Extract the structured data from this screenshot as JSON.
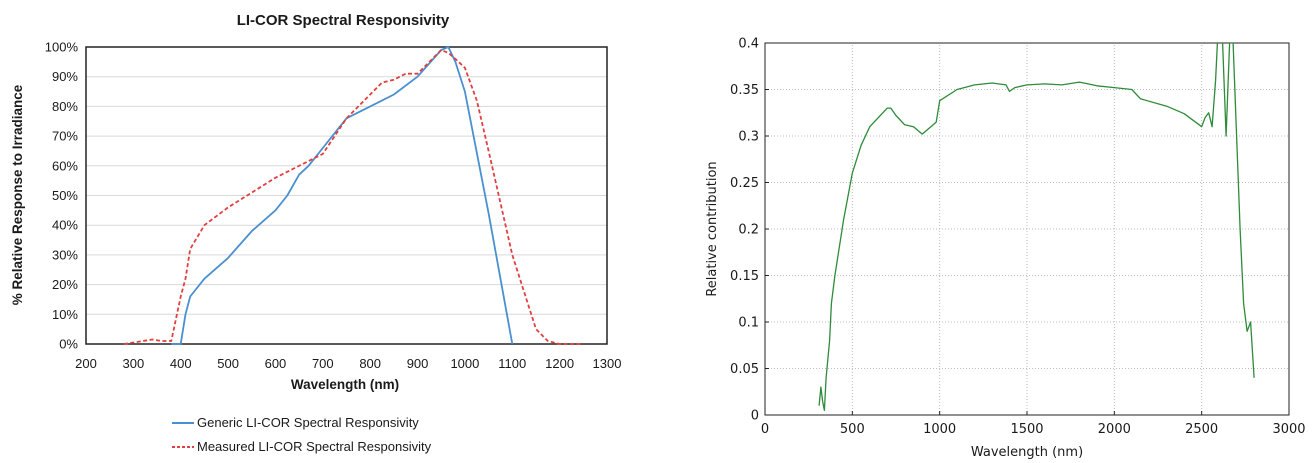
{
  "chart_data": [
    {
      "type": "line",
      "title": "LI-COR Spectral Responsivity",
      "xlabel": "Wavelength (nm)",
      "ylabel": "% Relative Response to Irradiance",
      "xlim": [
        200,
        1300
      ],
      "ylim": [
        0,
        100
      ],
      "x_ticks": [
        "200",
        "300",
        "400",
        "500",
        "600",
        "700",
        "800",
        "900",
        "1000",
        "1100",
        "1200",
        "1300"
      ],
      "y_ticks": [
        "0%",
        "10%",
        "20%",
        "30%",
        "40%",
        "50%",
        "60%",
        "70%",
        "80%",
        "90%",
        "100%"
      ],
      "grid": "horizontal",
      "legend_position": "bottom",
      "series": [
        {
          "name": "Generic LI-COR Spectral Responsivity",
          "color": "#4a90d0",
          "style": "solid",
          "x": [
            380,
            400,
            405,
            410,
            420,
            450,
            500,
            550,
            600,
            625,
            650,
            670,
            700,
            750,
            800,
            850,
            900,
            950,
            965,
            980,
            1000,
            1050,
            1100
          ],
          "y": [
            0,
            0,
            5,
            10,
            16,
            22,
            29,
            38,
            45,
            50,
            57,
            60,
            66,
            76,
            80,
            84,
            90,
            99,
            100,
            95,
            85,
            44,
            0
          ]
        },
        {
          "name": "Measured LI-COR Spectral Responsivity",
          "color": "#e04040",
          "style": "dashed",
          "x": [
            280,
            300,
            320,
            340,
            360,
            380,
            400,
            410,
            420,
            450,
            500,
            600,
            700,
            750,
            800,
            825,
            850,
            875,
            900,
            925,
            950,
            965,
            980,
            1000,
            1025,
            1050,
            1100,
            1150,
            1175,
            1200,
            1250
          ],
          "y": [
            0,
            0.5,
            1,
            1.5,
            1,
            1,
            16,
            22,
            32,
            40,
            46,
            56,
            64,
            76,
            84,
            88,
            89,
            91,
            91,
            95,
            99,
            98,
            96,
            93,
            82,
            65,
            30,
            5,
            1,
            0,
            0
          ]
        }
      ]
    },
    {
      "type": "line",
      "title": "",
      "xlabel": "Wavelength (nm)",
      "ylabel": "Relative contribution",
      "xlim": [
        0,
        3000
      ],
      "ylim": [
        0,
        0.4
      ],
      "x_ticks": [
        "0",
        "500",
        "1000",
        "1500",
        "2000",
        "2500",
        "3000"
      ],
      "y_ticks": [
        "0",
        "0.05",
        "0.1",
        "0.15",
        "0.2",
        "0.25",
        "0.3",
        "0.35",
        "0.4"
      ],
      "grid": "both",
      "series": [
        {
          "color": "#2e8b3a",
          "x": [
            310,
            320,
            330,
            340,
            350,
            370,
            380,
            400,
            450,
            500,
            550,
            600,
            650,
            700,
            720,
            750,
            800,
            850,
            900,
            950,
            980,
            1000,
            1100,
            1200,
            1300,
            1380,
            1400,
            1430,
            1500,
            1600,
            1700,
            1800,
            1850,
            1900,
            2000,
            2100,
            2150,
            2300,
            2400,
            2500,
            2520,
            2540,
            2560,
            2580,
            2590,
            2600,
            2620,
            2640,
            2660,
            2680,
            2700,
            2720,
            2740,
            2760,
            2780,
            2800
          ],
          "y": [
            0.01,
            0.03,
            0.015,
            0.005,
            0.04,
            0.08,
            0.12,
            0.15,
            0.21,
            0.26,
            0.29,
            0.31,
            0.32,
            0.33,
            0.33,
            0.322,
            0.312,
            0.31,
            0.302,
            0.31,
            0.315,
            0.338,
            0.35,
            0.355,
            0.357,
            0.355,
            0.348,
            0.352,
            0.355,
            0.356,
            0.355,
            0.358,
            0.356,
            0.354,
            0.352,
            0.35,
            0.34,
            0.332,
            0.324,
            0.31,
            0.32,
            0.325,
            0.31,
            0.36,
            0.4,
            0.41,
            0.4,
            0.3,
            0.4,
            0.4,
            0.3,
            0.2,
            0.12,
            0.09,
            0.1,
            0.04
          ]
        }
      ]
    }
  ]
}
